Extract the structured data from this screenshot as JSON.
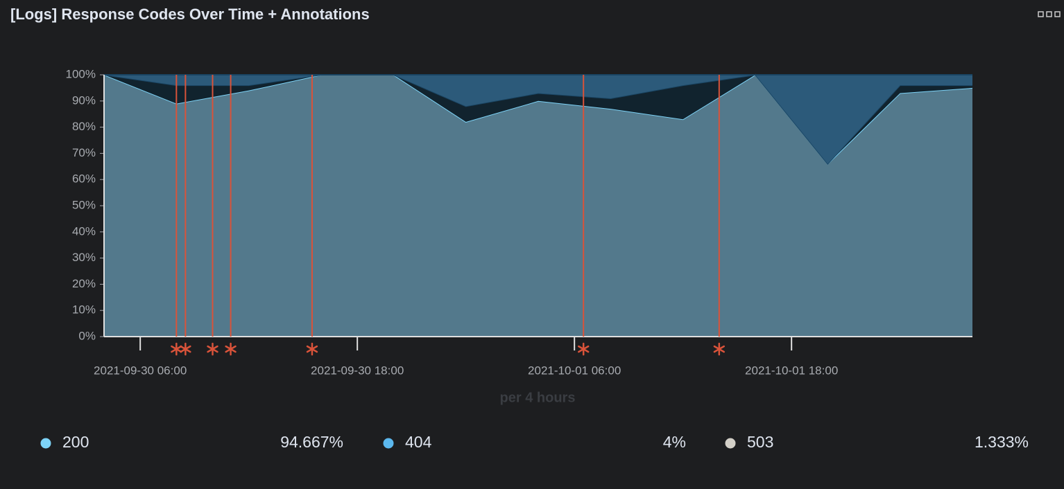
{
  "chart_data": {
    "type": "area",
    "title": "[Logs] Response Codes Over Time + Annotations",
    "x_label": "per 4 hours",
    "x": [
      "2021-09-30 04:00",
      "2021-09-30 08:00",
      "2021-09-30 12:00",
      "2021-09-30 16:00",
      "2021-09-30 20:00",
      "2021-10-01 00:00",
      "2021-10-01 04:00",
      "2021-10-01 08:00",
      "2021-10-01 12:00",
      "2021-10-01 16:00",
      "2021-10-01 20:00",
      "2021-10-02 00:00",
      "2021-10-02 04:00"
    ],
    "series": [
      {
        "name": "200",
        "color": "#7dd3f7",
        "fill": "#53798c",
        "values": [
          100,
          89,
          94,
          100,
          100,
          82,
          90,
          87,
          83,
          100,
          66,
          93,
          95
        ],
        "legend_value": {
          "value": 94.667,
          "label": "94.667%"
        }
      },
      {
        "name": "404",
        "color": "#5cb8ee",
        "fill": "#2c5a7a",
        "values": [
          0,
          4,
          4,
          0,
          0,
          12,
          7,
          9,
          4,
          0,
          34,
          4,
          4
        ],
        "legend_value": {
          "value": 4,
          "label": "4%"
        }
      },
      {
        "name": "503",
        "color": "#d3d0c8",
        "fill": "#11232e",
        "values": [
          0,
          7,
          2,
          0,
          0,
          6,
          3,
          4,
          13,
          0,
          0,
          3,
          1
        ],
        "legend_value": {
          "value": 1.333,
          "label": "1.333%"
        }
      }
    ],
    "annotations": [
      "2021-09-30 08:00",
      "2021-09-30 08:30",
      "2021-09-30 10:00",
      "2021-09-30 11:00",
      "2021-09-30 15:30",
      "2021-10-01 06:30",
      "2021-10-01 14:00"
    ],
    "annotation_color": "#d9533a",
    "xlim": [
      "2021-09-30 04:00",
      "2021-10-02 04:00"
    ],
    "xticks": [
      "2021-09-30 06:00",
      "2021-09-30 18:00",
      "2021-10-01 06:00",
      "2021-10-01 18:00"
    ],
    "ylim": [
      0,
      100
    ],
    "yticks": [
      {
        "value": 0,
        "label": "0%"
      },
      {
        "value": 10,
        "label": "10%"
      },
      {
        "value": 20,
        "label": "20%"
      },
      {
        "value": 30,
        "label": "30%"
      },
      {
        "value": 40,
        "label": "40%"
      },
      {
        "value": 50,
        "label": "50%"
      },
      {
        "value": 60,
        "label": "60%"
      },
      {
        "value": 70,
        "label": "70%"
      },
      {
        "value": 80,
        "label": "80%"
      },
      {
        "value": 90,
        "label": "90%"
      },
      {
        "value": 100,
        "label": "100%"
      }
    ],
    "grid": true,
    "stacked": true,
    "legend": "bottom"
  }
}
